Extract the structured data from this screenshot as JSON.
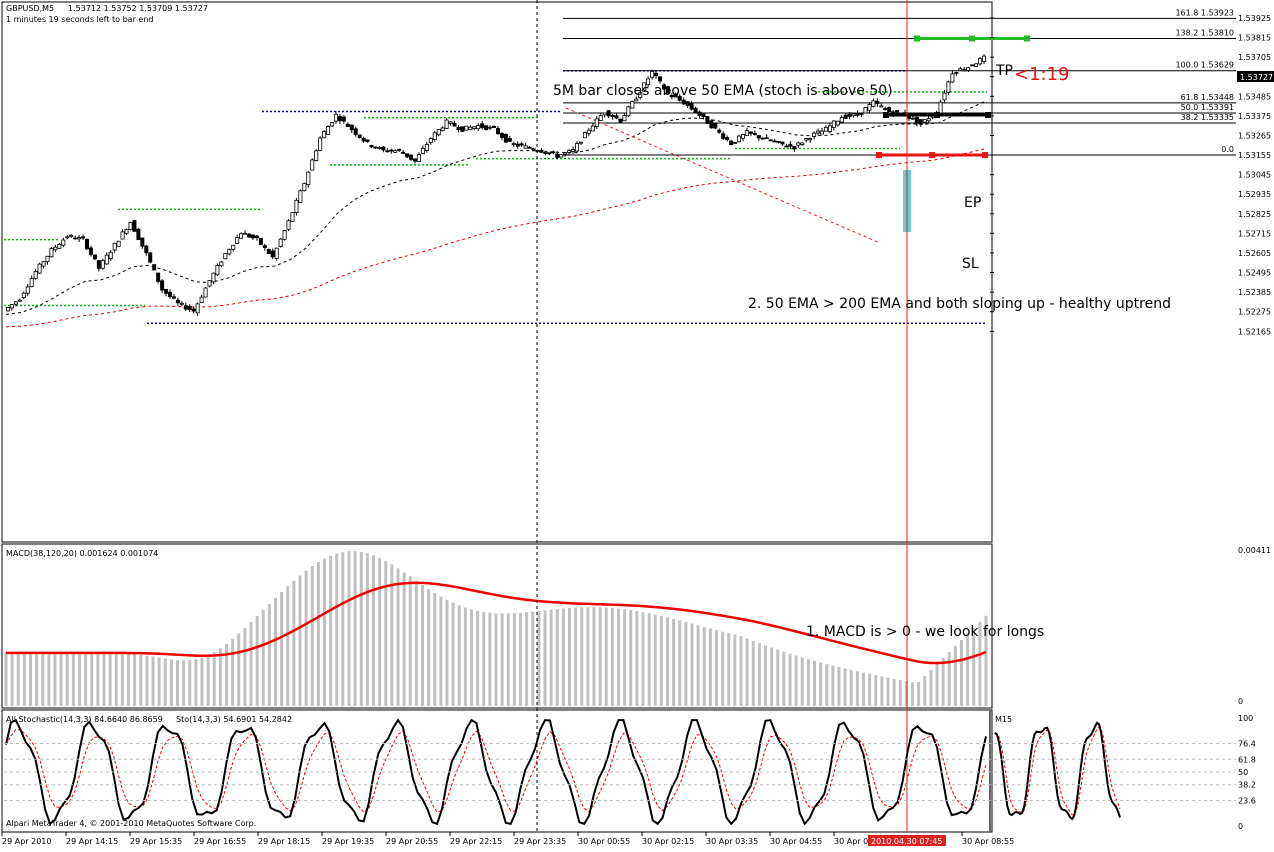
{
  "header": {
    "symbol": "GBPUSD,M5",
    "ohlc": "1.53712 1.53752 1.53709 1.53727",
    "timer": "1 minutes 19 seconds left to bar end"
  },
  "colors": {
    "price": "#000000",
    "ema50": "#000000",
    "ema200": "#dd0000",
    "fib": "#000000",
    "level_blue": "#00008b",
    "level_green": "#00bb00",
    "tp": "#22bb22",
    "sl": "#ee1111",
    "entry": "#000000",
    "entry_bar": "#66cccc",
    "macd_hist": "#c0c0c0",
    "macd_signal": "#ee0000",
    "stoch_main": "#000000",
    "stoch_signal": "#ee0000",
    "highlight": "#dd2222"
  },
  "price_axis": {
    "ticks": [
      "1.53925",
      "1.53815",
      "1.53705",
      "1.53595",
      "1.53485",
      "1.53375",
      "1.53265",
      "1.53155",
      "1.53045",
      "1.52935",
      "1.52825",
      "1.52715",
      "1.52605",
      "1.52495",
      "1.52385",
      "1.52275",
      "1.52165"
    ],
    "current": "1.53727"
  },
  "fib_levels": [
    {
      "label": "161.8  1.53923",
      "value": 1.53923
    },
    {
      "label": "138.2  1.53810",
      "value": 1.5381
    },
    {
      "label": "100.0  1.53629",
      "value": 1.53629
    },
    {
      "label": "61.8  1.53448",
      "value": 1.53448
    },
    {
      "label": "50.0  1.53391",
      "value": 1.53391
    },
    {
      "label": "38.2  1.53335",
      "value": 1.53335
    },
    {
      "label": "0.0",
      "value": 1.53155
    }
  ],
  "annotations": {
    "bar_close": "5M bar closes above 50 EMA (stoch is above 50)",
    "ema": "2. 50 EMA > 200 EMA and both sloping up - healthy uptrend",
    "macd": "1. MACD is > 0 - we look for longs",
    "tp": "TP",
    "ratio": "<1:19",
    "ep": "EP",
    "sl": "SL"
  },
  "macd": {
    "label": "MACD(38,120,20) 0.001624 0.001074",
    "max_tick": "0.00411",
    "zero_tick": "0"
  },
  "stoch": {
    "label": "All Stochastic(14,3,3) 84.6640 86.8659",
    "label2": "Sto(14,3,3) 54.6901 54.2842",
    "ticks": [
      "100",
      "76.4",
      "61.8",
      "50",
      "38.2",
      "23.6",
      "0"
    ],
    "m15": "M15"
  },
  "footer": "Alpari MetaTrader 4, © 2001-2010 MetaQuotes Software Corp.",
  "time_axis": {
    "labels": [
      "29 Apr 2010",
      "29 Apr 14:15",
      "29 Apr 15:35",
      "29 Apr 16:55",
      "29 Apr 18:15",
      "29 Apr 19:35",
      "29 Apr 20:55",
      "29 Apr 22:15",
      "29 Apr 23:35",
      "30 Apr 00:55",
      "30 Apr 02:15",
      "30 Apr 03:35",
      "30 Apr 04:55",
      "30 Apr 06:15",
      "30 Apr 08:55"
    ],
    "highlight": "2010.04.30 07:45"
  },
  "chart_data": {
    "type": "line",
    "series": [
      {
        "name": "GBPUSD,M5",
        "values": [
          1.5228,
          1.5235,
          1.525,
          1.5262,
          1.527,
          1.5268,
          1.5252,
          1.5265,
          1.5278,
          1.526,
          1.524,
          1.5232,
          1.5228,
          1.5245,
          1.526,
          1.5272,
          1.5268,
          1.5258,
          1.5278,
          1.53,
          1.5325,
          1.5338,
          1.533,
          1.5322,
          1.5318,
          1.5318,
          1.5312,
          1.5325,
          1.5334,
          1.533,
          1.5332,
          1.533,
          1.5322,
          1.532,
          1.5318,
          1.5315,
          1.5318,
          1.533,
          1.534,
          1.5335,
          1.5348,
          1.5362,
          1.535,
          1.5345,
          1.5338,
          1.533,
          1.5322,
          1.5328,
          1.5325,
          1.5322,
          1.532,
          1.5326,
          1.533,
          1.5337,
          1.5338,
          1.5345,
          1.534,
          1.5338,
          1.5333,
          1.534,
          1.5362,
          1.5365,
          1.537
        ]
      }
    ]
  }
}
